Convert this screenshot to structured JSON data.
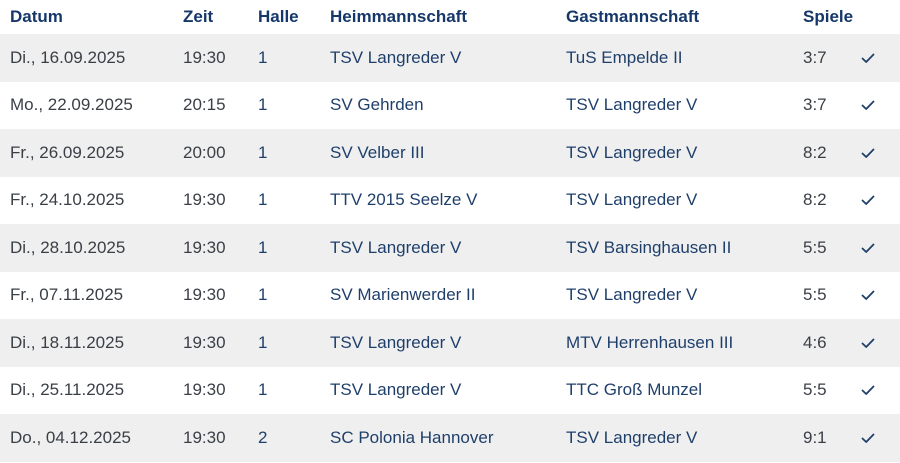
{
  "header": {
    "datum": "Datum",
    "zeit": "Zeit",
    "halle": "Halle",
    "heim": "Heimmannschaft",
    "gast": "Gastmannschaft",
    "spiele": "Spiele"
  },
  "rows": [
    {
      "datum": "Di., 16.09.2025",
      "zeit": "19:30",
      "halle": "1",
      "heim": "TSV Langreder V",
      "gast": "TuS Empelde II",
      "spiele": "3:7",
      "icon": "check-icon"
    },
    {
      "datum": "Mo., 22.09.2025",
      "zeit": "20:15",
      "halle": "1",
      "heim": "SV Gehrden",
      "gast": "TSV Langreder V",
      "spiele": "3:7",
      "icon": "check-icon"
    },
    {
      "datum": "Fr., 26.09.2025",
      "zeit": "20:00",
      "halle": "1",
      "heim": "SV Velber III",
      "gast": "TSV Langreder V",
      "spiele": "8:2",
      "icon": "check-icon"
    },
    {
      "datum": "Fr., 24.10.2025",
      "zeit": "19:30",
      "halle": "1",
      "heim": "TTV 2015 Seelze V",
      "gast": "TSV Langreder V",
      "spiele": "8:2",
      "icon": "check-icon"
    },
    {
      "datum": "Di., 28.10.2025",
      "zeit": "19:30",
      "halle": "1",
      "heim": "TSV Langreder V",
      "gast": "TSV Barsinghausen II",
      "spiele": "5:5",
      "icon": "check-icon"
    },
    {
      "datum": "Fr., 07.11.2025",
      "zeit": "19:30",
      "halle": "1",
      "heim": "SV Marienwerder II",
      "gast": "TSV Langreder V",
      "spiele": "5:5",
      "icon": "check-icon"
    },
    {
      "datum": "Di., 18.11.2025",
      "zeit": "19:30",
      "halle": "1",
      "heim": "TSV Langreder V",
      "gast": "MTV Herrenhausen III",
      "spiele": "4:6",
      "icon": "check-icon"
    },
    {
      "datum": "Di., 25.11.2025",
      "zeit": "19:30",
      "halle": "1",
      "heim": "TSV Langreder V",
      "gast": "TTC Groß Munzel",
      "spiele": "5:5",
      "icon": "check-icon"
    },
    {
      "datum": "Do., 04.12.2025",
      "zeit": "19:30",
      "halle": "2",
      "heim": "SC Polonia Hannover",
      "gast": "TSV Langreder V",
      "spiele": "9:1",
      "icon": "check-icon"
    }
  ],
  "colors": {
    "link": "#1f3f6b",
    "text": "#3a3f46",
    "shade": "#efefef",
    "header": "#15376a"
  }
}
